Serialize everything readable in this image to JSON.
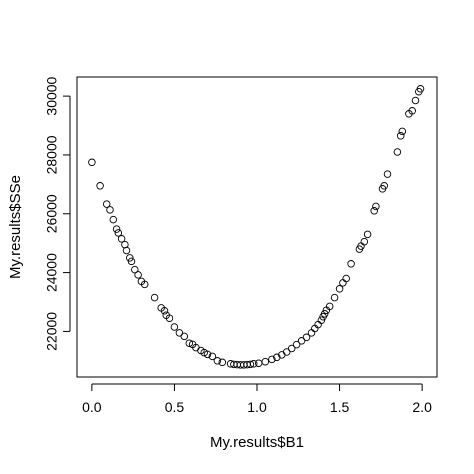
{
  "chart_data": {
    "type": "scatter",
    "title": "",
    "xlabel": "My.results$B1",
    "ylabel": "My.results$SSe",
    "xlim": [
      -0.09,
      2.09
    ],
    "ylim": [
      20450,
      30650
    ],
    "x_ticks": [
      0.0,
      0.5,
      1.0,
      1.5,
      2.0
    ],
    "x_tick_labels": [
      "0.0",
      "0.5",
      "1.0",
      "1.5",
      "2.0"
    ],
    "y_ticks": [
      22000,
      24000,
      26000,
      28000,
      30000
    ],
    "y_tick_labels": [
      "22000",
      "24000",
      "26000",
      "28000",
      "30000"
    ],
    "grid": false,
    "marker": "open-circle",
    "colors": {
      "point": "#000000",
      "axis": "#000000",
      "background": "#ffffff"
    },
    "points": [
      [
        0.0,
        27750
      ],
      [
        0.05,
        26950
      ],
      [
        0.09,
        26330
      ],
      [
        0.11,
        26130
      ],
      [
        0.13,
        25800
      ],
      [
        0.15,
        25480
      ],
      [
        0.16,
        25350
      ],
      [
        0.18,
        25150
      ],
      [
        0.2,
        24950
      ],
      [
        0.21,
        24750
      ],
      [
        0.23,
        24500
      ],
      [
        0.24,
        24380
      ],
      [
        0.26,
        24100
      ],
      [
        0.28,
        23920
      ],
      [
        0.3,
        23700
      ],
      [
        0.32,
        23600
      ],
      [
        0.38,
        23150
      ],
      [
        0.42,
        22800
      ],
      [
        0.44,
        22700
      ],
      [
        0.45,
        22550
      ],
      [
        0.47,
        22450
      ],
      [
        0.5,
        22150
      ],
      [
        0.53,
        21950
      ],
      [
        0.56,
        21830
      ],
      [
        0.59,
        21600
      ],
      [
        0.61,
        21560
      ],
      [
        0.63,
        21450
      ],
      [
        0.66,
        21350
      ],
      [
        0.68,
        21280
      ],
      [
        0.7,
        21220
      ],
      [
        0.73,
        21150
      ],
      [
        0.76,
        21000
      ],
      [
        0.79,
        20950
      ],
      [
        0.84,
        20900
      ],
      [
        0.86,
        20880
      ],
      [
        0.88,
        20870
      ],
      [
        0.9,
        20860
      ],
      [
        0.92,
        20860
      ],
      [
        0.94,
        20870
      ],
      [
        0.96,
        20880
      ],
      [
        0.98,
        20900
      ],
      [
        1.01,
        20920
      ],
      [
        1.05,
        20970
      ],
      [
        1.09,
        21050
      ],
      [
        1.12,
        21120
      ],
      [
        1.15,
        21200
      ],
      [
        1.18,
        21300
      ],
      [
        1.21,
        21420
      ],
      [
        1.24,
        21550
      ],
      [
        1.27,
        21680
      ],
      [
        1.3,
        21800
      ],
      [
        1.33,
        21950
      ],
      [
        1.35,
        22100
      ],
      [
        1.37,
        22230
      ],
      [
        1.39,
        22380
      ],
      [
        1.4,
        22500
      ],
      [
        1.41,
        22600
      ],
      [
        1.42,
        22720
      ],
      [
        1.44,
        22850
      ],
      [
        1.47,
        23150
      ],
      [
        1.5,
        23450
      ],
      [
        1.52,
        23650
      ],
      [
        1.54,
        23800
      ],
      [
        1.57,
        24300
      ],
      [
        1.62,
        24800
      ],
      [
        1.63,
        24900
      ],
      [
        1.65,
        25050
      ],
      [
        1.67,
        25300
      ],
      [
        1.71,
        26100
      ],
      [
        1.72,
        26250
      ],
      [
        1.76,
        26850
      ],
      [
        1.77,
        26950
      ],
      [
        1.79,
        27350
      ],
      [
        1.85,
        28100
      ],
      [
        1.87,
        28650
      ],
      [
        1.88,
        28800
      ],
      [
        1.92,
        29400
      ],
      [
        1.94,
        29500
      ],
      [
        1.96,
        29850
      ],
      [
        1.98,
        30150
      ],
      [
        1.99,
        30250
      ]
    ]
  }
}
